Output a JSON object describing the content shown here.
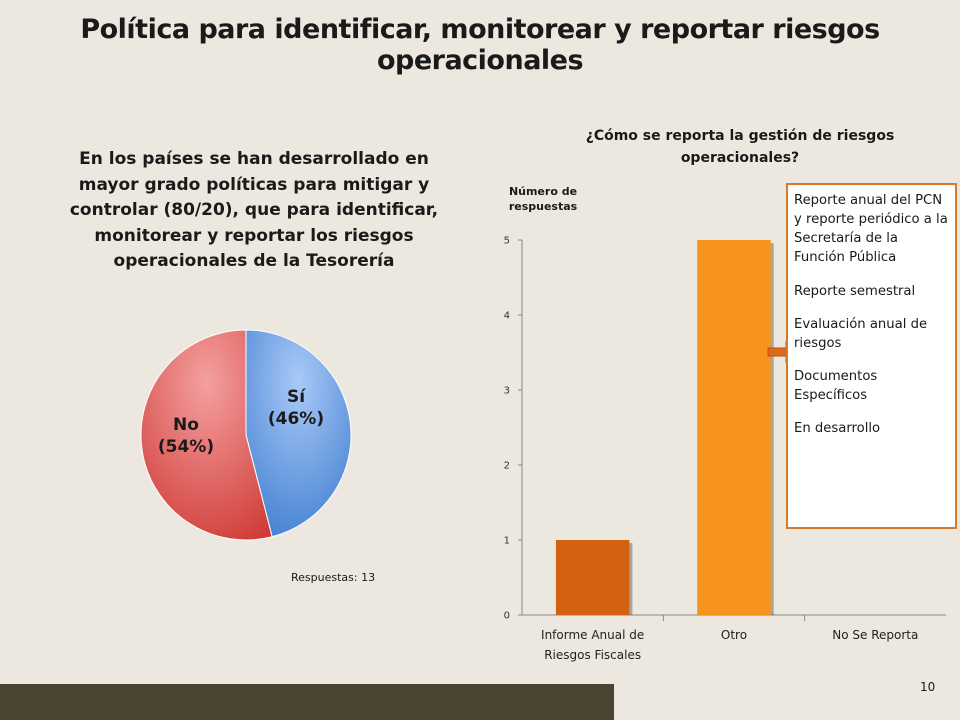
{
  "title": "Política para identificar, monitorear y reportar riesgos operacionales",
  "left_text": "En los países se han desarrollado en mayor grado políticas para mitigar y controlar (80/20), que para identificar, monitorear y reportar los riesgos operacionales  de la Tesorería",
  "responses_note": "Respuestas: 13",
  "callout": {
    "items": [
      "Reporte anual del PCN y reporte periódico a la Secretaría de la Función Pública",
      "Reporte semestral",
      "Evaluación anual de riesgos",
      "Documentos Específicos",
      "En desarrollo"
    ],
    "border_color": "#d97a2a"
  },
  "page_number": "10",
  "colors": {
    "background": "#ece8df",
    "footer_band": "#4b4430"
  },
  "chart_data": [
    {
      "type": "pie",
      "slices": [
        {
          "label": "Sí",
          "pct_label": "(46%)",
          "value": 46,
          "color": "#5b8fd6"
        },
        {
          "label": "No",
          "pct_label": "(54%)",
          "value": 54,
          "color": "#d9534f"
        }
      ]
    },
    {
      "type": "bar",
      "title": "¿Cómo se reporta la gestión de riesgos operacionales?",
      "ylabel": "Número de respuestas",
      "categories": [
        "Informe Anual de Riesgos Fiscales",
        "Otro",
        "No Se Reporta"
      ],
      "category_lines": [
        [
          "Informe Anual de",
          "Riesgos Fiscales"
        ],
        [
          "Otro"
        ],
        [
          "No Se Reporta"
        ]
      ],
      "values": [
        1,
        5,
        0
      ],
      "colors": [
        "#d2620f",
        "#f7941d",
        "#f7941d"
      ],
      "ylim": [
        0,
        5
      ],
      "yticks": [
        "0",
        "1",
        "2",
        "3",
        "4",
        "5"
      ],
      "grid": false
    }
  ]
}
